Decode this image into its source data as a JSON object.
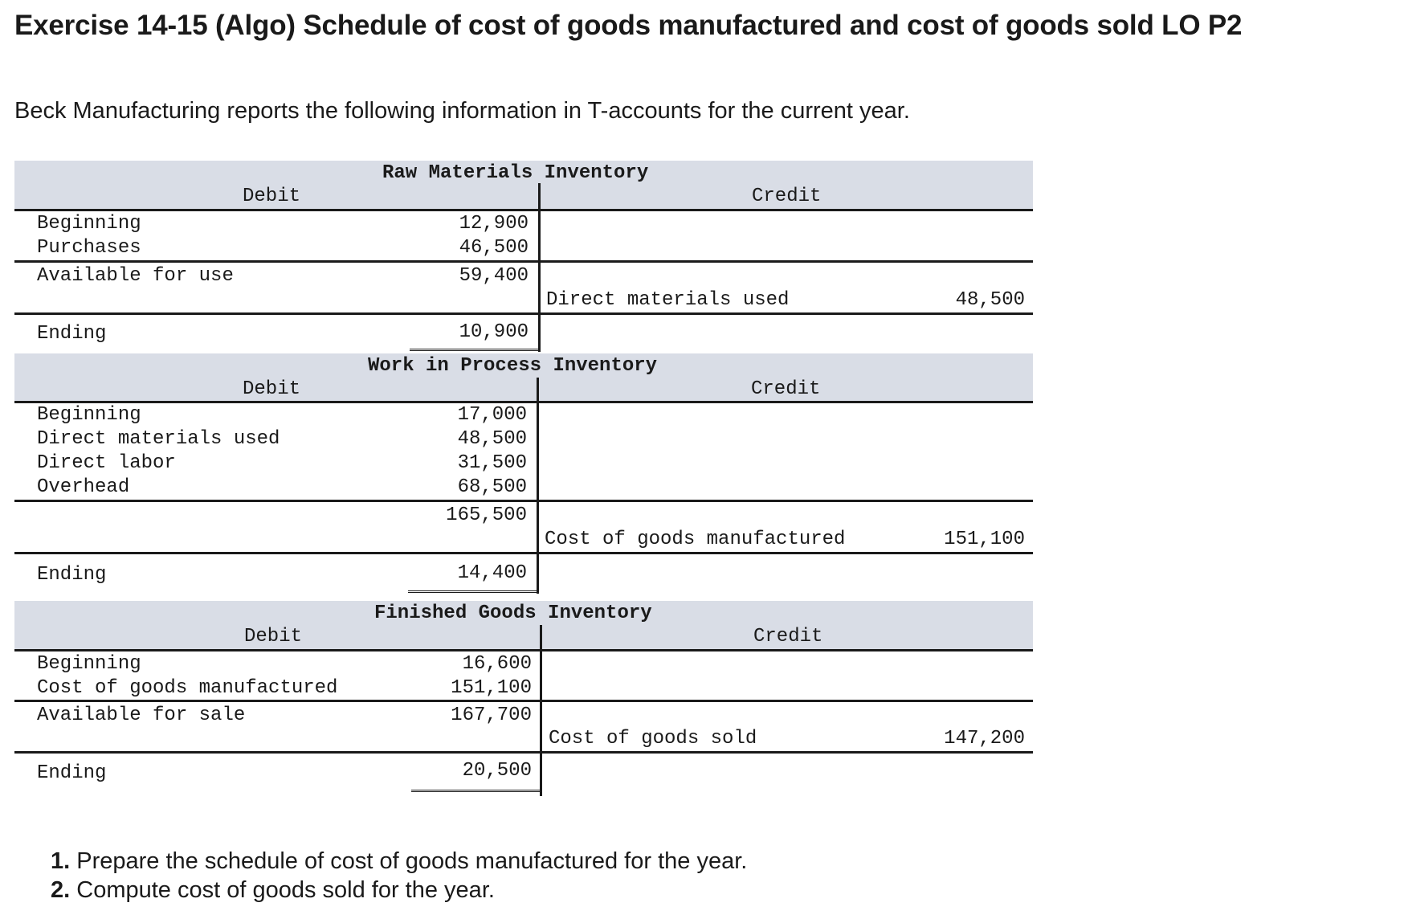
{
  "title": "Exercise 14-15 (Algo) Schedule of cost of goods manufactured and cost of goods sold LO P2",
  "intro": "Beck Manufacturing reports the following information in T-accounts for the current year.",
  "raw_materials": {
    "title": "Raw Materials Inventory",
    "debit": "Debit",
    "credit": "Credit",
    "rows": [
      {
        "label": "Beginning",
        "value": "12,900"
      },
      {
        "label": "Purchases",
        "value": "46,500"
      },
      {
        "label": "Available for use",
        "value": "59,400"
      }
    ],
    "credit_label": "Direct materials used",
    "credit_value": "48,500",
    "ending_label": "Ending",
    "ending_value": "10,900"
  },
  "wip": {
    "title": "Work in Process Inventory",
    "debit": "Debit",
    "credit": "Credit",
    "rows": [
      {
        "label": "Beginning",
        "value": "17,000"
      },
      {
        "label": "Direct materials used",
        "value": "48,500"
      },
      {
        "label": "Direct labor",
        "value": "31,500"
      },
      {
        "label": "Overhead",
        "value": "68,500"
      }
    ],
    "total_value": "165,500",
    "credit_label": "Cost of goods manufactured",
    "credit_value": "151,100",
    "ending_label": "Ending",
    "ending_value": "14,400"
  },
  "finished_goods": {
    "title": "Finished Goods Inventory",
    "debit": "Debit",
    "credit": "Credit",
    "rows": [
      {
        "label": "Beginning",
        "value": "16,600"
      },
      {
        "label": "Cost of goods manufactured",
        "value": "151,100"
      },
      {
        "label": "Available for sale",
        "value": "167,700"
      }
    ],
    "credit_label": "Cost of goods sold",
    "credit_value": "147,200",
    "ending_label": "Ending",
    "ending_value": "20,500"
  },
  "questions": [
    {
      "number": "1.",
      "text": " Prepare the schedule of cost of goods manufactured for the year."
    },
    {
      "number": "2.",
      "text": " Compute cost of goods sold for the year."
    }
  ]
}
